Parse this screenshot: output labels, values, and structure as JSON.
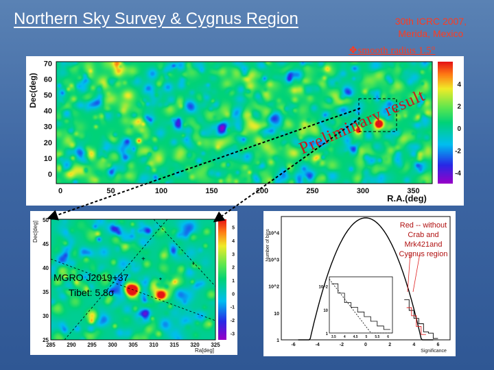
{
  "slide": {
    "title": "Northern Sky Survey & Cygnus Region",
    "conference_line1": "30th ICRC 2007,",
    "conference_line2": "Merida, Mexico",
    "smooth_label": "smooth radius 1.5°",
    "prelim_text": "Preliminary result"
  },
  "top_map": {
    "ylabel": "Dec(deg)",
    "xlabel": "R.A.(deg)",
    "y_ticks": [
      "0",
      "10",
      "20",
      "30",
      "40",
      "50",
      "60",
      "70"
    ],
    "x_ticks": [
      "0",
      "50",
      "100",
      "150",
      "200",
      "250",
      "300",
      "350"
    ],
    "colorbar_ticks": [
      "4",
      "2",
      "0",
      "-2",
      "-4"
    ]
  },
  "inset_map": {
    "ylabel": "Dec[deg]",
    "xlabel": "Ra[deg]",
    "y_ticks": [
      "25",
      "30",
      "35",
      "40",
      "45",
      "50"
    ],
    "x_ticks": [
      "285",
      "290",
      "295",
      "300",
      "305",
      "310",
      "315",
      "320",
      "325"
    ],
    "colorbar_ticks": [
      "5",
      "4",
      "3",
      "2",
      "1",
      "0",
      "-1",
      "-2",
      "-3"
    ],
    "source_name": "MGRO J2019+37",
    "tibet_label": "Tibet: 5.8σ"
  },
  "histogram": {
    "ylabel": "Number of bins",
    "xlabel": "Significance",
    "y_ticks": [
      "10^4",
      "10^3",
      "10^2",
      "10",
      "1"
    ],
    "x_ticks": [
      "-6",
      "-4",
      "-2",
      "0",
      "2",
      "4",
      "6"
    ],
    "inset_y_ticks": [
      "10^2",
      "10",
      "1"
    ],
    "inset_x_ticks": [
      "3.5",
      "4",
      "4.5",
      "5",
      "5.5",
      "6"
    ],
    "annotation": "Red -- without Crab and Mrk421and Cygnus region"
  },
  "colors": {
    "accent_red": "#ff3b1f",
    "prelim_red": "#c8181c",
    "background_blue": "#3d66a3"
  }
}
